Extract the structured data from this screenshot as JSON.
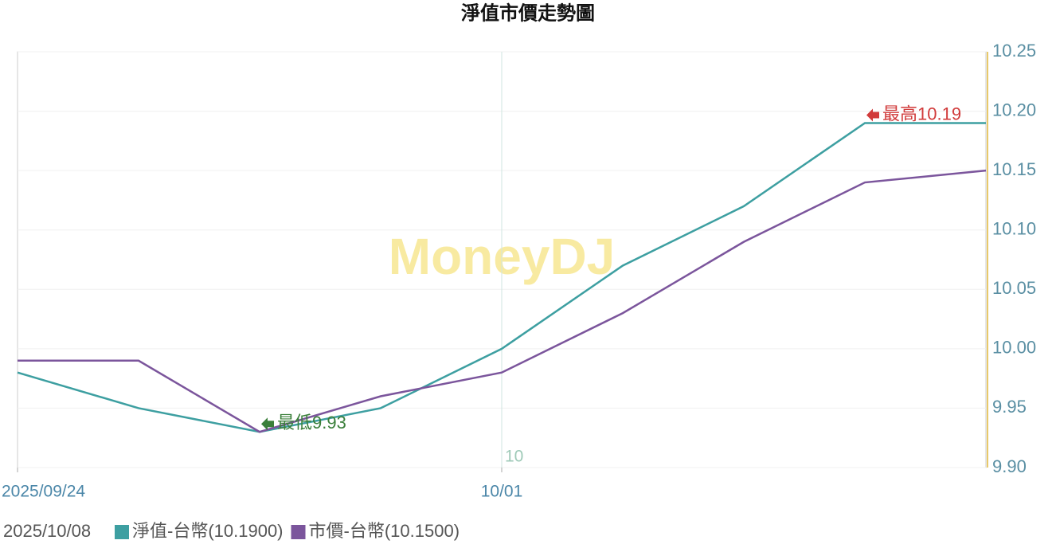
{
  "chart_data": {
    "type": "line",
    "title": "淨值市價走勢圖",
    "watermark": "MoneyDJ",
    "categories": [
      "2025/09/24",
      null,
      null,
      null,
      "10/01",
      null,
      null,
      null,
      null
    ],
    "series": [
      {
        "name": "淨值-台幣(10.1900)",
        "color": "#3d9fa1",
        "values": [
          9.98,
          9.95,
          9.93,
          9.95,
          10.0,
          10.07,
          10.12,
          10.19,
          10.19
        ]
      },
      {
        "name": "市價-台幣(10.1500)",
        "color": "#7b559c",
        "values": [
          9.99,
          9.99,
          9.93,
          9.96,
          9.98,
          10.03,
          10.09,
          10.14,
          10.15
        ]
      }
    ],
    "ylim": [
      9.9,
      10.25
    ],
    "yticks": [
      {
        "value": 9.9,
        "label": "9.90"
      },
      9.95,
      {
        "value": 10,
        "label": "10.00"
      },
      10.05,
      {
        "value": 10.1,
        "label": "10.10"
      },
      10.15,
      {
        "value": 10.2,
        "label": "10.20"
      },
      10.25
    ],
    "grid": true,
    "max_label": "最高10.19",
    "min_label": "最低9.93",
    "marker_label": "10",
    "legend_date": "2025/10/08"
  }
}
